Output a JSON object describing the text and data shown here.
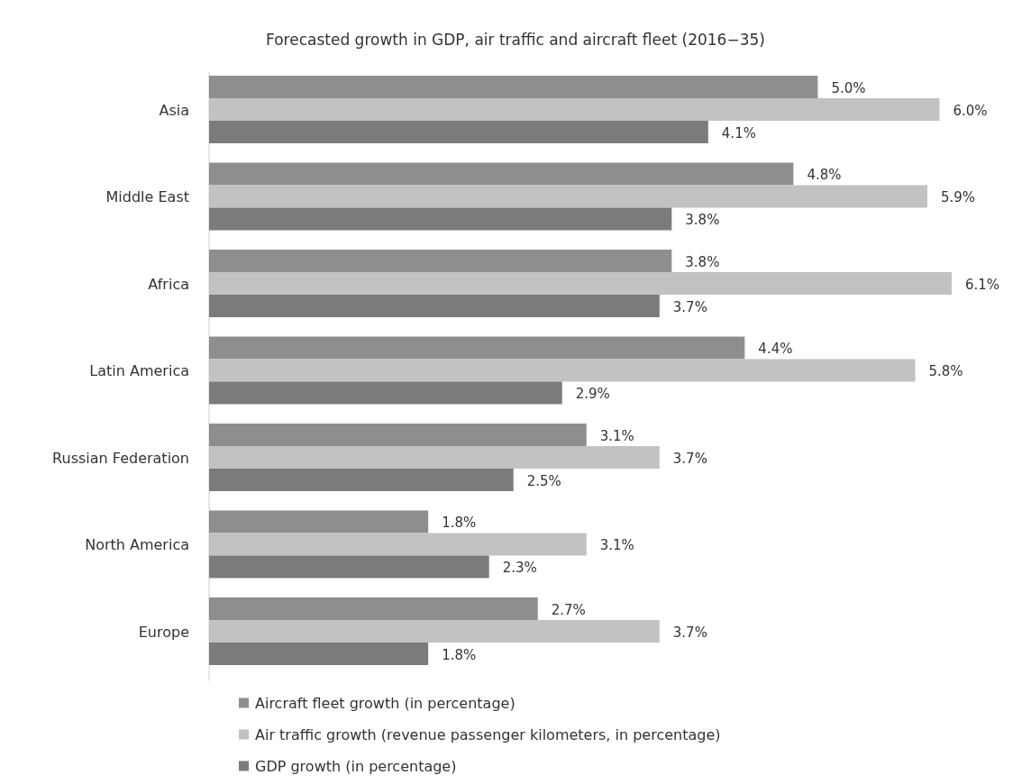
{
  "chart_data": {
    "type": "bar",
    "orientation": "horizontal",
    "title": "Forecasted growth in GDP, air traffic and aircraft fleet (2016−35)",
    "categories": [
      "Asia",
      "Middle East",
      "Africa",
      "Latin America",
      "Russian Federation",
      "North America",
      "Europe"
    ],
    "legend": "bottom",
    "series": [
      {
        "name": "Aircraft fleet growth (in percentage)",
        "color": "#8e8e8e",
        "values": [
          5.0,
          4.8,
          3.8,
          4.4,
          3.1,
          1.8,
          2.7
        ],
        "value_labels": [
          "5.0%",
          "4.8%",
          "3.8%",
          "4.4%",
          "3.1%",
          "1.8%",
          "2.7%"
        ]
      },
      {
        "name": "Air traffic growth (revenue passenger kilometers, in percentage)",
        "color": "#c2c2c2",
        "values": [
          6.0,
          5.9,
          6.1,
          5.8,
          3.7,
          3.1,
          3.7
        ],
        "value_labels": [
          "6.0%",
          "5.9%",
          "6.1%",
          "5.8%",
          "3.7%",
          "3.1%",
          "3.7%"
        ]
      },
      {
        "name": "GDP growth (in percentage)",
        "color": "#7b7b7b",
        "values": [
          4.1,
          3.8,
          3.7,
          2.9,
          2.5,
          2.3,
          1.8
        ],
        "value_labels": [
          "4.1%",
          "3.8%",
          "3.7%",
          "2.9%",
          "2.5%",
          "2.3%",
          "1.8%"
        ]
      }
    ]
  }
}
